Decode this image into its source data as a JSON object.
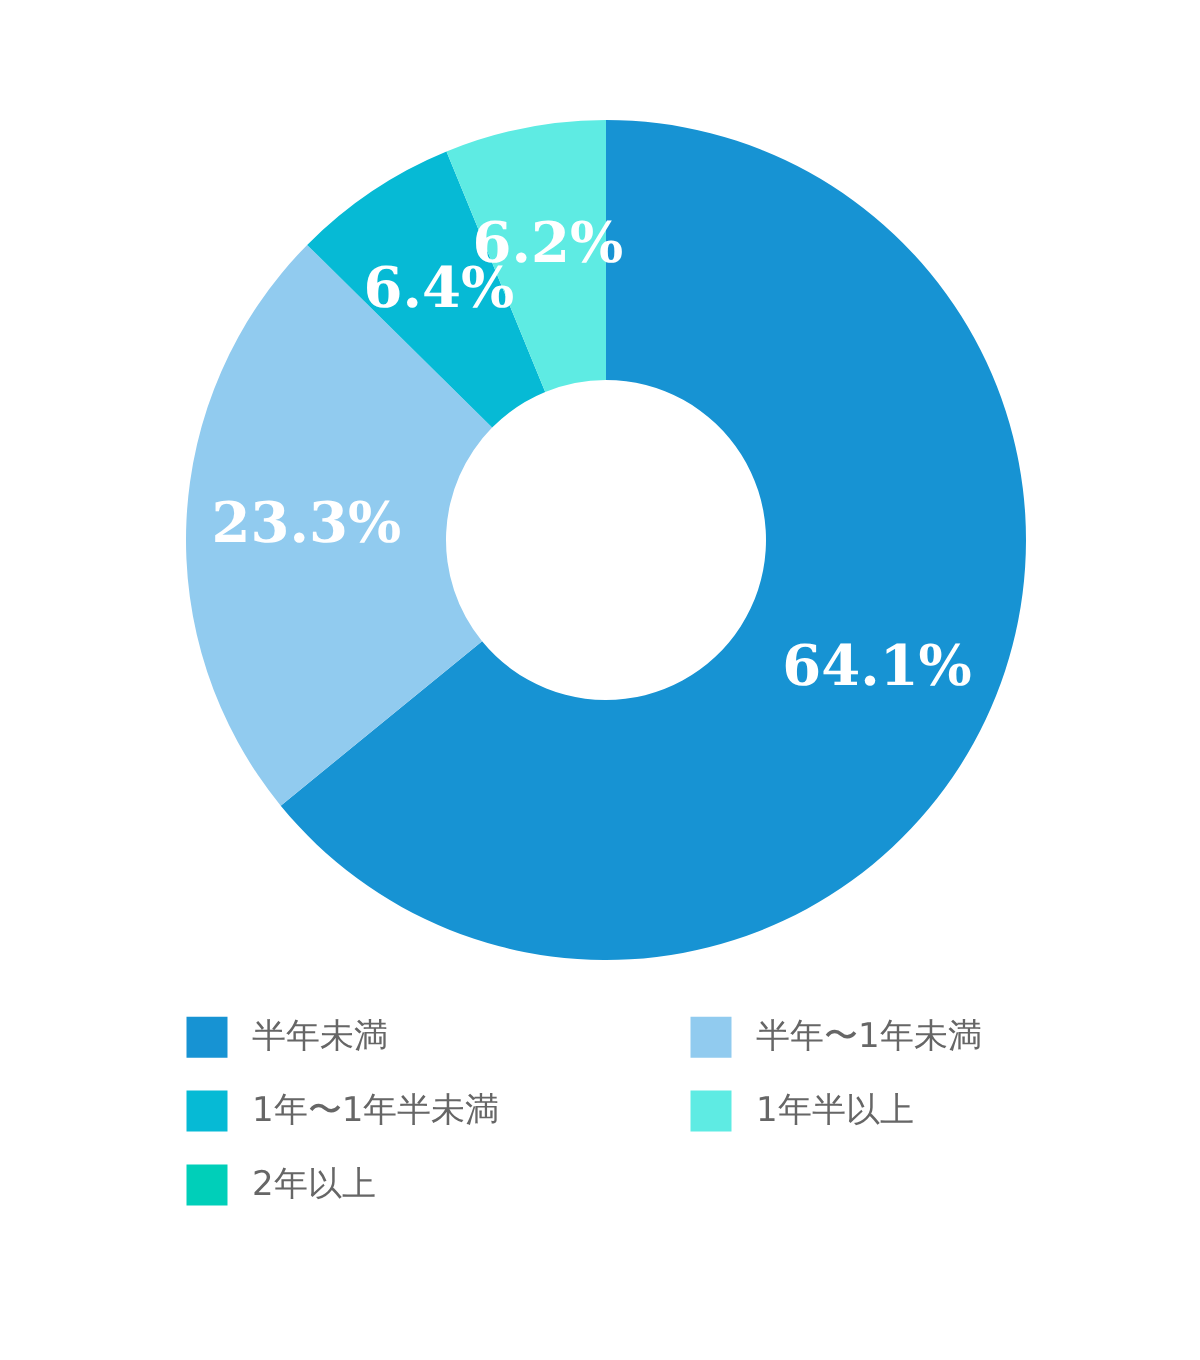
{
  "chart_data": {
    "type": "donut",
    "categories": [
      "半年未満",
      "半年〜1年未満",
      "1年〜1年半未満",
      "1年半以上",
      "2年以上"
    ],
    "values": [
      64.1,
      23.3,
      6.4,
      6.2,
      0
    ],
    "colors": [
      "#1793d3",
      "#91cbef",
      "#06bad5",
      "#5eebe3",
      "#00cfb9"
    ],
    "value_labels": [
      "64.1%",
      "23.3%",
      "6.4%",
      "6.2%",
      null
    ],
    "legend": "bottom"
  }
}
